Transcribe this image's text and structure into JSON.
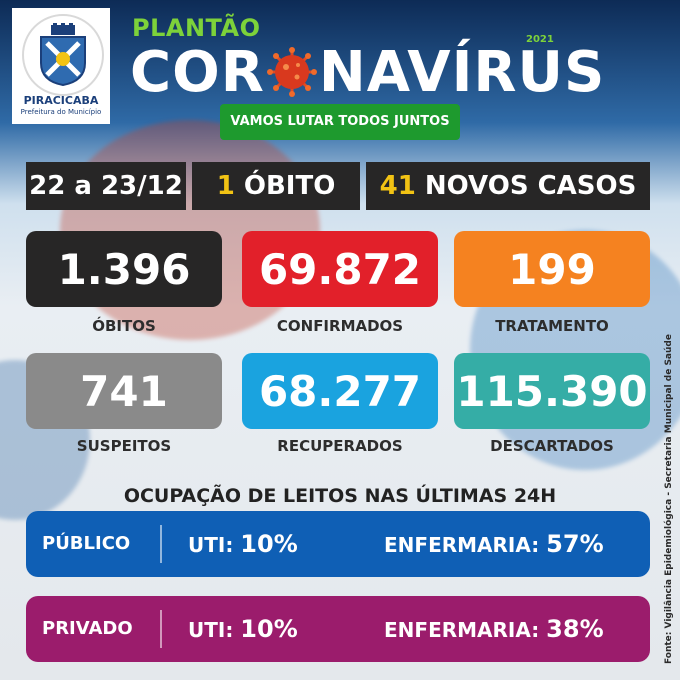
{
  "header": {
    "city": "PIRACICABA",
    "city_subtitle": "Prefeitura do Município",
    "plantao": "PLANTÃO",
    "year": "2021",
    "title_left": "COR",
    "title_right": "NAVÍRUS",
    "slogan": "VAMOS LUTAR TODOS JUNTOS"
  },
  "summary": {
    "date_range": "22 a 23/12",
    "deaths_number": "1",
    "deaths_label": "ÓBITO",
    "new_cases_number": "41",
    "new_cases_label": "NOVOS CASOS"
  },
  "stats": [
    {
      "value": "1.396",
      "label": "ÓBITOS",
      "color": "#272626"
    },
    {
      "value": "69.872",
      "label": "CONFIRMADOS",
      "color": "#e2202a"
    },
    {
      "value": "199",
      "label": "TRATAMENTO",
      "color": "#f58220"
    },
    {
      "value": "741",
      "label": "SUSPEITOS",
      "color": "#8a8a8a"
    },
    {
      "value": "68.277",
      "label": "RECUPERADOS",
      "color": "#1aa3df"
    },
    {
      "value": "115.390",
      "label": "DESCARTADOS",
      "color": "#35ada6"
    }
  ],
  "occupancy": {
    "title": "OCUPAÇÃO DE LEITOS NAS ÚLTIMAS 24H",
    "rows": [
      {
        "sector": "PÚBLICO",
        "uti_label": "UTI:",
        "uti_value": "10%",
        "ward_label": "ENFERMARIA:",
        "ward_value": "57%",
        "color": "#0f5fb5"
      },
      {
        "sector": "PRIVADO",
        "uti_label": "UTI:",
        "uti_value": "10%",
        "ward_label": "ENFERMARIA:",
        "ward_value": "38%",
        "color": "#9b1c6c"
      }
    ]
  },
  "source": "Fonte: Vigilância Epidemiológica - Secretaria Municipal de Saúde",
  "icons": [
    "coat-of-arms-icon",
    "coronavirus-icon"
  ]
}
